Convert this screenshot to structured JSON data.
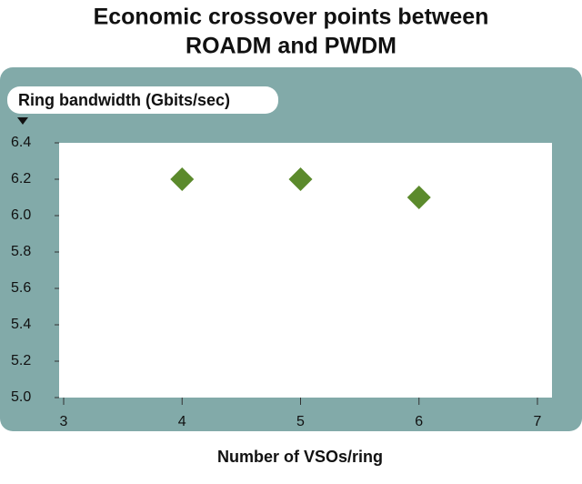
{
  "chart_data": {
    "type": "scatter",
    "title": [
      "Economic crossover points between",
      "ROADM and PWDM"
    ],
    "y_label": "Ring bandwidth (Gbits/sec)",
    "x_label": "Number of VSOs/ring",
    "x": [
      4,
      5,
      6
    ],
    "values": [
      6.2,
      6.2,
      6.1
    ],
    "color": "#5b8a2c",
    "xlim": [
      3,
      7
    ],
    "xticks": [
      3,
      4,
      5,
      6,
      7
    ],
    "ylim": [
      5.0,
      6.4
    ],
    "yticks": [
      {
        "value": 5.0,
        "label": "5.0"
      },
      {
        "value": 5.2,
        "label": "5.2"
      },
      {
        "value": 5.4,
        "label": "5.4"
      },
      {
        "value": 5.6,
        "label": "5.6"
      },
      {
        "value": 5.8,
        "label": "5.8"
      },
      {
        "value": 6.0,
        "label": "6.0"
      },
      {
        "value": 6.2,
        "label": "6.2"
      },
      {
        "value": 6.4,
        "label": "6.4"
      }
    ]
  }
}
